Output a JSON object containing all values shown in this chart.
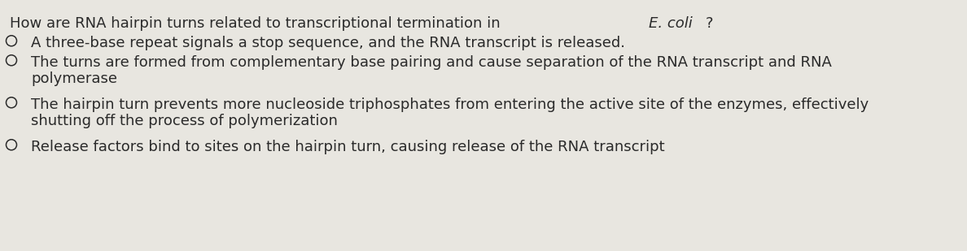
{
  "background_color": "#e8e6e0",
  "text_color": "#2a2a2a",
  "question_before": "How are RNA hairpin turns related to transcriptional termination in ",
  "question_italic": "E. coli",
  "question_after": "?",
  "options": [
    {
      "lines": [
        "A three-base repeat signals a stop sequence, and the RNA transcript is released."
      ]
    },
    {
      "lines": [
        "The turns are formed from complementary base pairing and cause separation of the RNA transcript and RNA",
        "polymerase"
      ]
    },
    {
      "lines": [
        "The hairpin turn prevents more nucleoside triphosphates from entering the active site of the enzymes, effectively",
        "shutting off the process of polymerization"
      ]
    },
    {
      "lines": [
        "Release factors bind to sites on the hairpin turn, causing release of the RNA transcript"
      ]
    }
  ],
  "font_size": 13.0,
  "fig_width": 11.88,
  "fig_height": 3.09
}
